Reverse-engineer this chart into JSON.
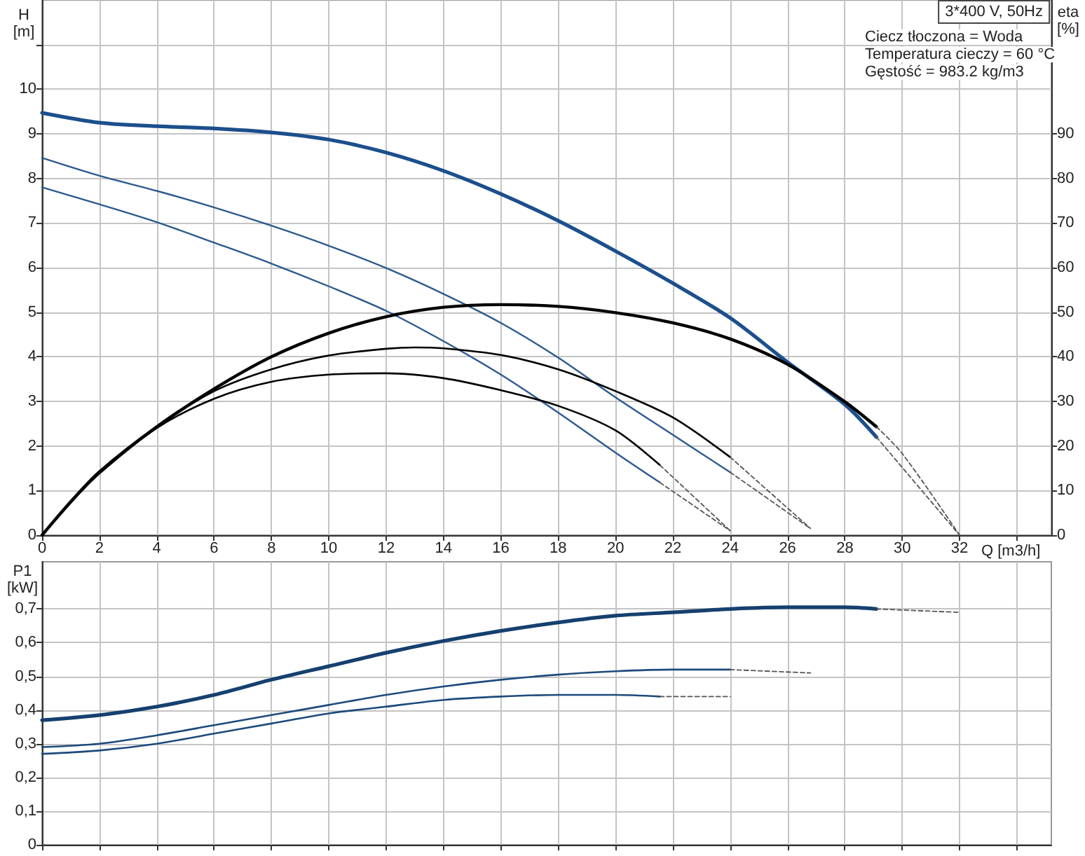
{
  "chart_data": [
    {
      "type": "line",
      "title": "3*400 V, 50Hz",
      "annotations": [
        "Ciecz tłoczona = Woda",
        "Temperatura cieczy = 60 °C",
        "Gęstość = 983.2 kg/m3"
      ],
      "xlabel": "Q [m3/h]",
      "ylabel": "H [m]",
      "y2label": "eta [%]",
      "xlim": [
        0,
        35.2
      ],
      "xticks": [
        0,
        2,
        4,
        6,
        8,
        10,
        12,
        14,
        16,
        18,
        20,
        22,
        24,
        26,
        28,
        30,
        32,
        {
          "value": 34,
          "label": null
        }
      ],
      "ylim": [
        0,
        12
      ],
      "yticks": [
        0,
        1,
        2,
        3,
        4,
        5,
        6,
        7,
        8,
        9,
        10,
        {
          "value": 11,
          "label": null
        }
      ],
      "y2lim": [
        0,
        120
      ],
      "y2ticks": [
        0,
        10,
        20,
        30,
        40,
        50,
        60,
        70,
        80,
        90
      ],
      "grid": true,
      "marker": "none",
      "line_style": "solid",
      "series": [
        {
          "color": "#1c4f8c",
          "x": [
            0,
            2,
            4,
            6,
            8,
            10,
            12,
            14,
            16,
            18,
            20,
            22,
            24,
            26,
            28,
            29.1
          ],
          "values": [
            9.47,
            9.25,
            9.17,
            9.12,
            9.03,
            8.87,
            8.58,
            8.17,
            7.65,
            7.05,
            6.37,
            5.65,
            4.87,
            3.88,
            2.93,
            2.2
          ]
        },
        {
          "color": "#2d5a8e",
          "x": [
            0,
            2,
            4,
            6,
            8,
            10,
            12,
            14,
            16,
            18,
            20,
            22,
            24
          ],
          "values": [
            8.46,
            8.06,
            7.72,
            7.35,
            6.94,
            6.49,
            5.99,
            5.41,
            4.76,
            3.98,
            3.09,
            2.25,
            1.41
          ]
        },
        {
          "color": "#2d5a8e",
          "x": [
            0,
            2,
            4,
            6,
            8,
            10,
            12,
            14,
            16,
            18,
            20,
            21.55
          ],
          "values": [
            7.8,
            7.42,
            7.02,
            6.56,
            6.09,
            5.58,
            5.03,
            4.35,
            3.6,
            2.75,
            1.85,
            1.18
          ]
        },
        {
          "color": "#000000",
          "axis": "y2",
          "x": [
            0,
            1,
            2,
            4,
            6,
            8,
            10,
            12,
            14,
            16,
            18,
            20,
            22,
            24,
            26,
            28,
            29.1
          ],
          "values": [
            0,
            7.5,
            14.2,
            24.3,
            32.8,
            40,
            45.3,
            49,
            51.1,
            51.7,
            51.3,
            49.9,
            47.6,
            44,
            38.3,
            29.9,
            24.3
          ]
        },
        {
          "color": "#000000",
          "axis": "y2",
          "x": [
            0,
            1,
            2,
            4,
            6,
            8,
            10,
            12,
            13,
            14,
            16,
            18,
            20,
            22,
            24
          ],
          "values": [
            0,
            7.3,
            14,
            24.2,
            32.3,
            37.2,
            40.3,
            41.8,
            42.1,
            41.9,
            40.4,
            37.2,
            32.3,
            26.4,
            17.5
          ]
        },
        {
          "color": "#000000",
          "axis": "y2",
          "x": [
            0,
            1,
            2,
            4,
            6,
            8,
            10,
            12,
            14,
            16,
            18,
            20,
            21.55
          ],
          "values": [
            0,
            7.3,
            13.8,
            24,
            30.6,
            34.4,
            36,
            36.3,
            35.2,
            32.5,
            29,
            23.5,
            15.7
          ]
        },
        {
          "color": "#555555",
          "line_style": "dashed",
          "x": [
            29.1,
            32
          ],
          "values": [
            2.2,
            0
          ]
        },
        {
          "color": "#555555",
          "line_style": "dashed",
          "axis": "y2",
          "x": [
            29.1,
            30,
            32
          ],
          "values": [
            24.3,
            18.3,
            0
          ]
        },
        {
          "color": "#555555",
          "line_style": "dashed",
          "x": [
            24,
            26.8
          ],
          "values": [
            1.41,
            0.15
          ]
        },
        {
          "color": "#555555",
          "line_style": "dashed",
          "axis": "y2",
          "x": [
            24,
            26.8
          ],
          "values": [
            17.5,
            1.5
          ]
        },
        {
          "color": "#555555",
          "line_style": "dashed",
          "x": [
            21.55,
            24
          ],
          "values": [
            1.18,
            0.1
          ]
        },
        {
          "color": "#555555",
          "line_style": "dashed",
          "axis": "y2",
          "x": [
            21.55,
            24
          ],
          "values": [
            15.7,
            1
          ]
        }
      ]
    },
    {
      "type": "line",
      "ylabel": "P1 [kW]",
      "tick_labels": "y",
      "xlim": [
        0,
        35.2
      ],
      "xticks": [
        0,
        2,
        4,
        6,
        8,
        10,
        12,
        14,
        16,
        18,
        20,
        22,
        24,
        26,
        28,
        30,
        32,
        {
          "value": 34,
          "label": null
        }
      ],
      "ylim": [
        0,
        0.84
      ],
      "yticks": [
        0,
        {
          "value": 0.1,
          "label": "0,1"
        },
        {
          "value": 0.2,
          "label": "0,2"
        },
        {
          "value": 0.3,
          "label": "0,3"
        },
        {
          "value": 0.4,
          "label": "0,4"
        },
        {
          "value": 0.5,
          "label": "0,5"
        },
        {
          "value": 0.6,
          "label": "0,6"
        },
        {
          "value": 0.7,
          "label": "0,7"
        }
      ],
      "grid": true,
      "marker": "none",
      "line_style": "solid",
      "series": [
        {
          "color": "#15406f",
          "x": [
            0,
            2,
            4,
            6,
            8,
            10,
            12,
            14,
            16,
            18,
            20,
            22,
            24,
            26,
            28,
            29.1
          ],
          "values": [
            0.37,
            0.385,
            0.41,
            0.445,
            0.49,
            0.53,
            0.57,
            0.605,
            0.635,
            0.66,
            0.68,
            0.69,
            0.7,
            0.705,
            0.705,
            0.7
          ]
        },
        {
          "color": "#1d4a7c",
          "x": [
            0,
            2,
            4,
            6,
            8,
            10,
            12,
            14,
            16,
            18,
            20,
            22,
            24
          ],
          "values": [
            0.29,
            0.3,
            0.325,
            0.355,
            0.385,
            0.415,
            0.445,
            0.47,
            0.49,
            0.505,
            0.515,
            0.52,
            0.52
          ]
        },
        {
          "color": "#1d4a7c",
          "x": [
            0,
            2,
            4,
            6,
            8,
            10,
            12,
            14,
            16,
            18,
            20,
            21.55
          ],
          "values": [
            0.27,
            0.28,
            0.3,
            0.33,
            0.36,
            0.39,
            0.41,
            0.43,
            0.44,
            0.445,
            0.445,
            0.44
          ]
        },
        {
          "color": "#555555",
          "line_style": "dashed",
          "x": [
            29.1,
            32
          ],
          "values": [
            0.7,
            0.69
          ]
        },
        {
          "color": "#555555",
          "line_style": "dashed",
          "x": [
            24,
            26.8
          ],
          "values": [
            0.52,
            0.51
          ]
        },
        {
          "color": "#555555",
          "line_style": "dashed",
          "x": [
            21.55,
            24
          ],
          "values": [
            0.44,
            0.44
          ]
        }
      ]
    }
  ]
}
